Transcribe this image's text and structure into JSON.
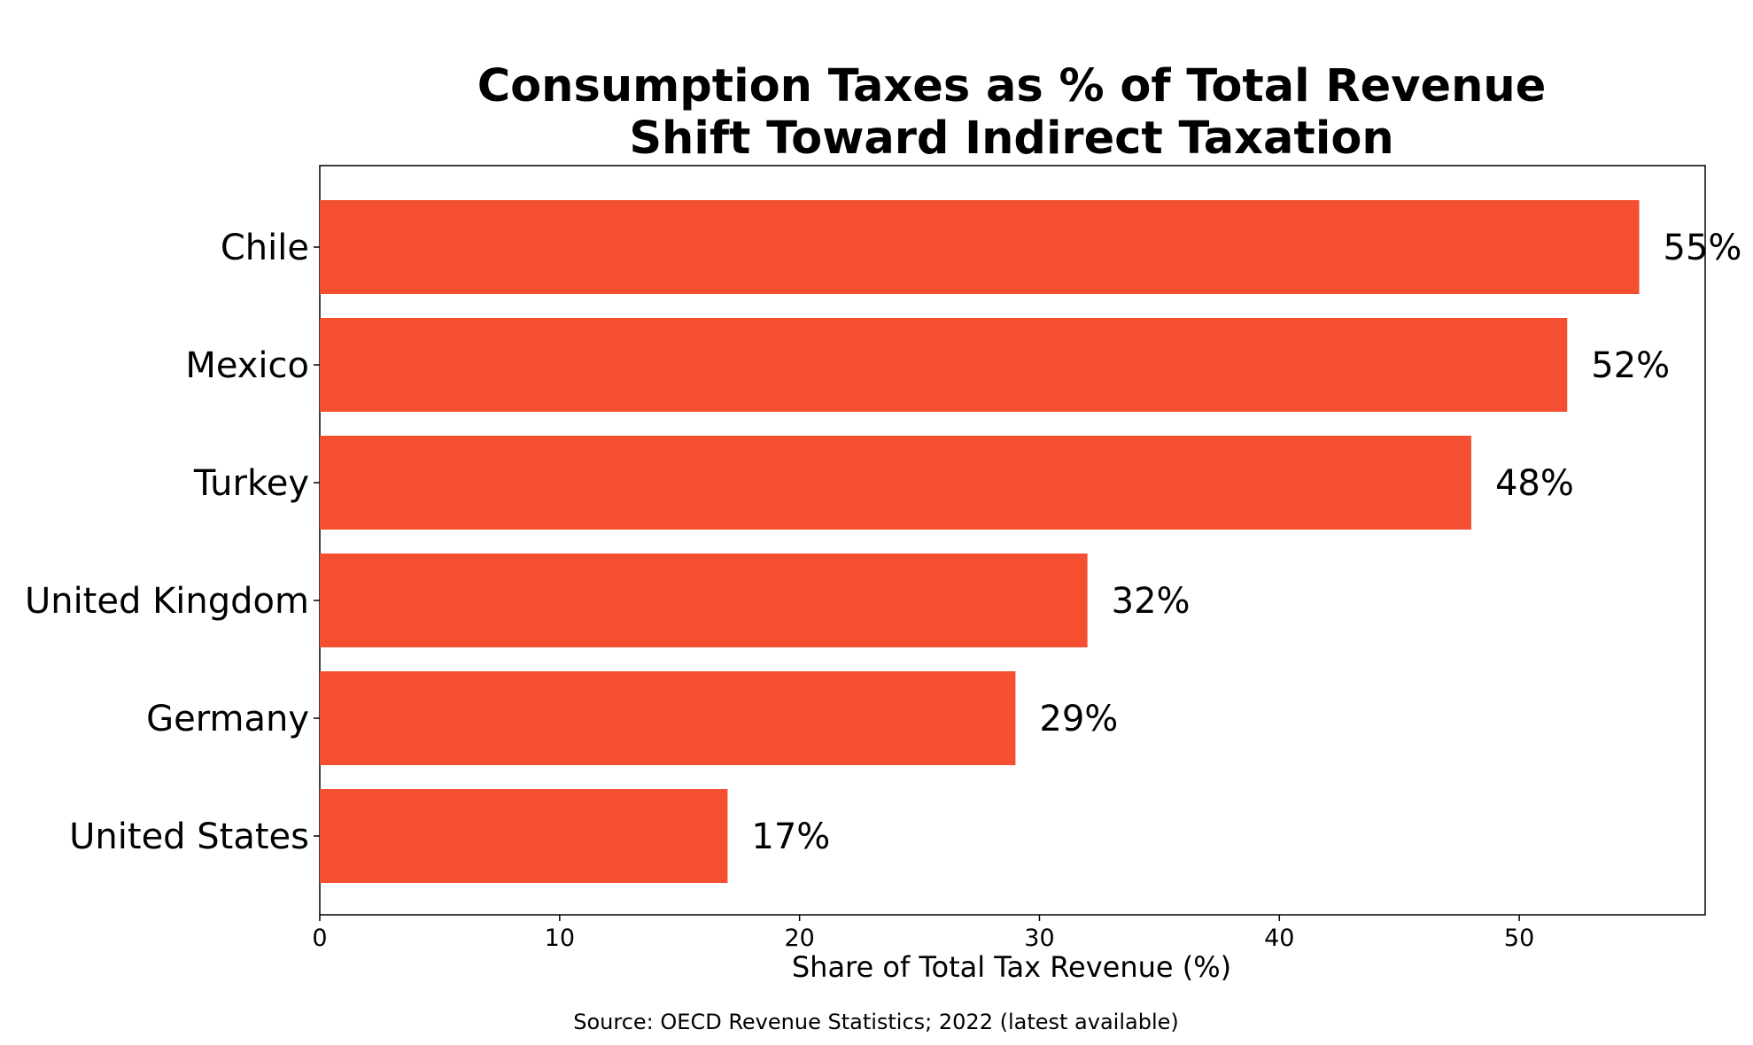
{
  "chart_data": {
    "type": "bar",
    "orientation": "horizontal",
    "title_lines": [
      "Consumption Taxes as % of Total Revenue",
      "Shift Toward Indirect Taxation"
    ],
    "categories": [
      "Chile",
      "Mexico",
      "Turkey",
      "United Kingdom",
      "Germany",
      "United States"
    ],
    "values": [
      55,
      52,
      48,
      32,
      29,
      17
    ],
    "value_labels": [
      "55%",
      "52%",
      "48%",
      "32%",
      "29%",
      "17%"
    ],
    "xlabel": "Share of Total Tax Revenue (%)",
    "ylabel": "",
    "xlim": [
      0,
      57.75
    ],
    "xticks": [
      0,
      10,
      20,
      30,
      40,
      50
    ],
    "xtick_labels": [
      "0",
      "10",
      "20",
      "30",
      "40",
      "50"
    ],
    "grid": false,
    "bar_color": "#f44f30",
    "source": "Source: OECD Revenue Statistics; 2022 (latest available)"
  }
}
